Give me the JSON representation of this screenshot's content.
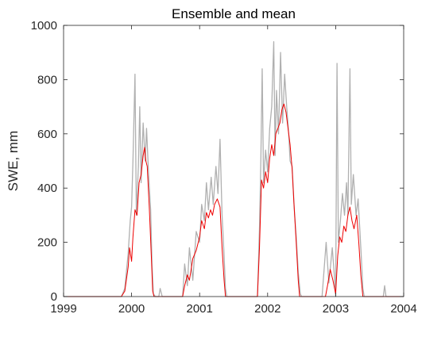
{
  "chart_data": {
    "type": "line",
    "title": "Ensemble and mean",
    "xlabel": "",
    "ylabel": "SWE, mm",
    "xlim": [
      1999,
      2004
    ],
    "ylim": [
      0,
      1000
    ],
    "xticks": [
      1999,
      2000,
      2001,
      2002,
      2003,
      2004
    ],
    "yticks": [
      0,
      200,
      400,
      600,
      800,
      1000
    ],
    "grid": false,
    "series": [
      {
        "role": "ensemble",
        "color": "#b0b0b0",
        "points": [
          [
            1999.0,
            0
          ],
          [
            1999.5,
            0
          ],
          [
            1999.85,
            0
          ],
          [
            1999.9,
            30
          ],
          [
            1999.95,
            160
          ],
          [
            1999.98,
            280
          ],
          [
            2000.0,
            330
          ],
          [
            2000.02,
            500
          ],
          [
            2000.05,
            820
          ],
          [
            2000.07,
            300
          ],
          [
            2000.1,
            480
          ],
          [
            2000.12,
            700
          ],
          [
            2000.14,
            420
          ],
          [
            2000.17,
            640
          ],
          [
            2000.2,
            500
          ],
          [
            2000.22,
            620
          ],
          [
            2000.25,
            450
          ],
          [
            2000.28,
            320
          ],
          [
            2000.3,
            120
          ],
          [
            2000.32,
            10
          ],
          [
            2000.35,
            0
          ],
          [
            2000.4,
            0
          ],
          [
            2000.42,
            30
          ],
          [
            2000.45,
            0
          ],
          [
            2000.75,
            0
          ],
          [
            2000.78,
            120
          ],
          [
            2000.82,
            40
          ],
          [
            2000.85,
            180
          ],
          [
            2000.9,
            60
          ],
          [
            2000.95,
            240
          ],
          [
            2001.0,
            200
          ],
          [
            2001.03,
            340
          ],
          [
            2001.07,
            280
          ],
          [
            2001.1,
            420
          ],
          [
            2001.13,
            320
          ],
          [
            2001.17,
            440
          ],
          [
            2001.2,
            340
          ],
          [
            2001.24,
            480
          ],
          [
            2001.27,
            380
          ],
          [
            2001.3,
            580
          ],
          [
            2001.33,
            300
          ],
          [
            2001.36,
            150
          ],
          [
            2001.38,
            30
          ],
          [
            2001.4,
            0
          ],
          [
            2001.85,
            0
          ],
          [
            2001.88,
            250
          ],
          [
            2001.9,
            500
          ],
          [
            2001.92,
            840
          ],
          [
            2001.94,
            420
          ],
          [
            2001.97,
            540
          ],
          [
            2002.0,
            460
          ],
          [
            2002.03,
            620
          ],
          [
            2002.06,
            700
          ],
          [
            2002.09,
            940
          ],
          [
            2002.11,
            520
          ],
          [
            2002.13,
            760
          ],
          [
            2002.16,
            600
          ],
          [
            2002.19,
            900
          ],
          [
            2002.22,
            640
          ],
          [
            2002.25,
            820
          ],
          [
            2002.28,
            700
          ],
          [
            2002.31,
            600
          ],
          [
            2002.33,
            500
          ],
          [
            2002.36,
            480
          ],
          [
            2002.39,
            330
          ],
          [
            2002.42,
            220
          ],
          [
            2002.45,
            90
          ],
          [
            2002.48,
            10
          ],
          [
            2002.5,
            0
          ],
          [
            2002.8,
            0
          ],
          [
            2002.83,
            100
          ],
          [
            2002.86,
            200
          ],
          [
            2002.9,
            50
          ],
          [
            2002.95,
            180
          ],
          [
            2002.98,
            80
          ],
          [
            2003.0,
            0
          ],
          [
            2003.02,
            860
          ],
          [
            2003.04,
            200
          ],
          [
            2003.07,
            280
          ],
          [
            2003.1,
            380
          ],
          [
            2003.13,
            300
          ],
          [
            2003.16,
            420
          ],
          [
            2003.18,
            300
          ],
          [
            2003.21,
            840
          ],
          [
            2003.23,
            340
          ],
          [
            2003.26,
            450
          ],
          [
            2003.3,
            300
          ],
          [
            2003.33,
            360
          ],
          [
            2003.37,
            180
          ],
          [
            2003.4,
            30
          ],
          [
            2003.42,
            0
          ],
          [
            2003.7,
            0
          ],
          [
            2003.72,
            40
          ],
          [
            2003.74,
            0
          ],
          [
            2004.0,
            0
          ]
        ]
      },
      {
        "role": "mean",
        "color": "#ee0000",
        "points": [
          [
            1999.0,
            0
          ],
          [
            1999.85,
            0
          ],
          [
            1999.9,
            20
          ],
          [
            1999.95,
            110
          ],
          [
            1999.97,
            180
          ],
          [
            2000.0,
            130
          ],
          [
            2000.02,
            220
          ],
          [
            2000.05,
            320
          ],
          [
            2000.08,
            300
          ],
          [
            2000.11,
            420
          ],
          [
            2000.14,
            450
          ],
          [
            2000.17,
            520
          ],
          [
            2000.19,
            550
          ],
          [
            2000.21,
            500
          ],
          [
            2000.23,
            480
          ],
          [
            2000.26,
            330
          ],
          [
            2000.29,
            150
          ],
          [
            2000.31,
            20
          ],
          [
            2000.33,
            0
          ],
          [
            2000.75,
            0
          ],
          [
            2000.78,
            40
          ],
          [
            2000.82,
            80
          ],
          [
            2000.85,
            60
          ],
          [
            2000.9,
            140
          ],
          [
            2000.95,
            170
          ],
          [
            2001.0,
            220
          ],
          [
            2001.03,
            280
          ],
          [
            2001.07,
            250
          ],
          [
            2001.1,
            310
          ],
          [
            2001.13,
            290
          ],
          [
            2001.16,
            320
          ],
          [
            2001.19,
            300
          ],
          [
            2001.22,
            340
          ],
          [
            2001.26,
            360
          ],
          [
            2001.3,
            330
          ],
          [
            2001.33,
            180
          ],
          [
            2001.36,
            60
          ],
          [
            2001.38,
            0
          ],
          [
            2001.85,
            0
          ],
          [
            2001.88,
            180
          ],
          [
            2001.91,
            430
          ],
          [
            2001.94,
            400
          ],
          [
            2001.97,
            460
          ],
          [
            2002.0,
            420
          ],
          [
            2002.03,
            510
          ],
          [
            2002.06,
            560
          ],
          [
            2002.09,
            520
          ],
          [
            2002.12,
            600
          ],
          [
            2002.15,
            620
          ],
          [
            2002.18,
            640
          ],
          [
            2002.21,
            690
          ],
          [
            2002.24,
            710
          ],
          [
            2002.27,
            680
          ],
          [
            2002.3,
            620
          ],
          [
            2002.33,
            560
          ],
          [
            2002.36,
            470
          ],
          [
            2002.39,
            330
          ],
          [
            2002.42,
            200
          ],
          [
            2002.45,
            60
          ],
          [
            2002.47,
            0
          ],
          [
            2002.85,
            0
          ],
          [
            2002.88,
            40
          ],
          [
            2002.92,
            100
          ],
          [
            2002.96,
            60
          ],
          [
            2003.0,
            10
          ],
          [
            2003.03,
            150
          ],
          [
            2003.06,
            220
          ],
          [
            2003.09,
            200
          ],
          [
            2003.12,
            260
          ],
          [
            2003.15,
            240
          ],
          [
            2003.18,
            300
          ],
          [
            2003.21,
            330
          ],
          [
            2003.24,
            280
          ],
          [
            2003.27,
            250
          ],
          [
            2003.31,
            300
          ],
          [
            2003.34,
            200
          ],
          [
            2003.37,
            80
          ],
          [
            2003.4,
            0
          ],
          [
            2004.0,
            0
          ]
        ]
      }
    ]
  }
}
